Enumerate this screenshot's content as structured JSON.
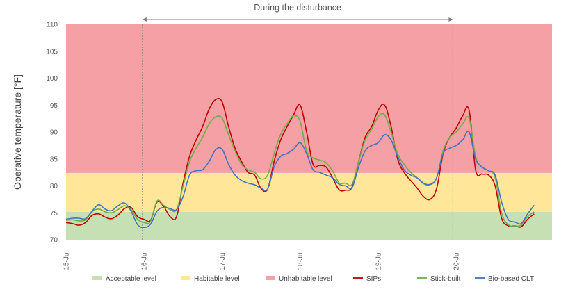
{
  "chart_data": {
    "type": "line",
    "title": "",
    "annotation": "During the disturbance",
    "xlabel": "",
    "ylabel": "Operative temperature [°F]",
    "ylim": [
      70,
      110
    ],
    "yticks": [
      70,
      75,
      80,
      85,
      90,
      95,
      100,
      105,
      110
    ],
    "x_unit": "hours since 15-Jul 00:00",
    "xlim": [
      0,
      144
    ],
    "xtick_labels": [
      {
        "label": "15-Jul",
        "hour": 0
      },
      {
        "label": "16-Jul",
        "hour": 24
      },
      {
        "label": "17-Jul",
        "hour": 48
      },
      {
        "label": "18-Jul",
        "hour": 72
      },
      {
        "label": "19-Jul",
        "hour": 96
      },
      {
        "label": "20-Jul",
        "hour": 120
      }
    ],
    "disturbance_period": {
      "start_hour": 23.5,
      "end_hour": 119
    },
    "bands": [
      {
        "name": "Acceptable level",
        "from": 70,
        "to": 75.2,
        "color": "#c6e0b4"
      },
      {
        "name": "Habitable level",
        "from": 75.2,
        "to": 82.4,
        "color": "#ffe699"
      },
      {
        "name": "Unhabitable level",
        "from": 82.4,
        "to": 110,
        "color": "#f4a0a4"
      }
    ],
    "grid": false,
    "legend_position": "bottom",
    "x": [
      0,
      2,
      4,
      6,
      8,
      10,
      12,
      14,
      16,
      18,
      20,
      22,
      24,
      26,
      28,
      30,
      32,
      34,
      36,
      38,
      40,
      42,
      44,
      46,
      48,
      50,
      52,
      54,
      56,
      58,
      60,
      62,
      64,
      66,
      68,
      70,
      72,
      74,
      76,
      78,
      80,
      82,
      84,
      86,
      88,
      90,
      92,
      94,
      96,
      98,
      100,
      102,
      104,
      106,
      108,
      110,
      112,
      114,
      116,
      118,
      120,
      122,
      124,
      126,
      128,
      130,
      132,
      134,
      136,
      138,
      140,
      142,
      144
    ],
    "series": [
      {
        "name": "SIPs",
        "color": "#c00000",
        "values": [
          73.2,
          73.0,
          72.7,
          73.2,
          74.5,
          74.8,
          74.2,
          73.9,
          74.6,
          75.8,
          76.0,
          74.3,
          73.8,
          73.6,
          77.0,
          76.2,
          74.3,
          74.3,
          80.5,
          85.5,
          88.5,
          91.0,
          94.2,
          96.0,
          95.6,
          91.0,
          87.0,
          84.5,
          82.5,
          82.0,
          79.5,
          79.4,
          84.5,
          88.5,
          91.0,
          93.2,
          95.0,
          90.0,
          84.0,
          83.8,
          83.5,
          81.5,
          79.3,
          79.2,
          79.8,
          84.5,
          89.0,
          91.0,
          94.0,
          95.0,
          91.0,
          85.0,
          82.5,
          81.0,
          79.6,
          78.0,
          77.5,
          79.5,
          86.0,
          89.0,
          90.7,
          93.0,
          94.0,
          83.0,
          82.2,
          82.0,
          80.0,
          74.0,
          72.6,
          72.6,
          72.4,
          73.8,
          74.8
        ]
      },
      {
        "name": "Stick-built",
        "color": "#70ad47",
        "values": [
          73.6,
          73.7,
          73.5,
          73.7,
          75.2,
          75.7,
          75.2,
          75.0,
          75.6,
          76.3,
          75.6,
          73.8,
          73.2,
          73.4,
          77.2,
          76.4,
          75.6,
          75.6,
          80.0,
          84.5,
          87.0,
          89.0,
          91.5,
          92.8,
          92.6,
          89.5,
          86.5,
          84.0,
          83.0,
          82.5,
          81.3,
          82.0,
          86.0,
          89.5,
          91.5,
          93.0,
          92.0,
          86.5,
          85.2,
          84.8,
          84.3,
          82.8,
          80.6,
          80.5,
          80.3,
          84.5,
          88.5,
          90.5,
          92.8,
          93.2,
          90.0,
          86.0,
          84.0,
          82.5,
          81.5,
          80.4,
          80.2,
          81.5,
          86.5,
          89.0,
          90.0,
          91.5,
          92.5,
          85.5,
          83.5,
          82.8,
          81.5,
          75.0,
          72.8,
          72.6,
          72.7,
          74.3,
          75.2
        ]
      },
      {
        "name": "Bio-based CLT",
        "color": "#4472c4",
        "values": [
          73.8,
          74.0,
          74.0,
          73.9,
          75.3,
          76.5,
          75.7,
          75.4,
          76.3,
          76.8,
          75.3,
          72.8,
          72.3,
          72.9,
          75.3,
          76.0,
          75.8,
          75.6,
          78.0,
          82.0,
          82.8,
          83.0,
          84.5,
          86.7,
          86.8,
          84.0,
          82.0,
          81.0,
          80.5,
          80.2,
          79.6,
          79.4,
          83.5,
          85.5,
          86.0,
          86.8,
          88.0,
          86.0,
          83.0,
          82.5,
          82.0,
          81.5,
          80.3,
          80.0,
          79.7,
          83.5,
          86.5,
          87.5,
          88.0,
          89.5,
          88.5,
          85.5,
          83.0,
          82.0,
          81.5,
          80.5,
          80.3,
          81.5,
          86.0,
          87.0,
          87.5,
          88.5,
          90.0,
          85.0,
          83.5,
          82.8,
          82.0,
          77.0,
          73.8,
          73.3,
          73.0,
          74.8,
          76.4
        ]
      }
    ],
    "legend": [
      {
        "label": "Acceptable level",
        "kind": "patch",
        "color": "#c6e0b4"
      },
      {
        "label": "Habitable level",
        "kind": "patch",
        "color": "#ffe699"
      },
      {
        "label": "Unhabitable level",
        "kind": "patch",
        "color": "#f4a0a4"
      },
      {
        "label": "SIPs",
        "kind": "line",
        "color": "#c00000"
      },
      {
        "label": "Stick-built",
        "kind": "line",
        "color": "#70ad47"
      },
      {
        "label": "Bio-based CLT",
        "kind": "line",
        "color": "#4472c4"
      }
    ]
  }
}
